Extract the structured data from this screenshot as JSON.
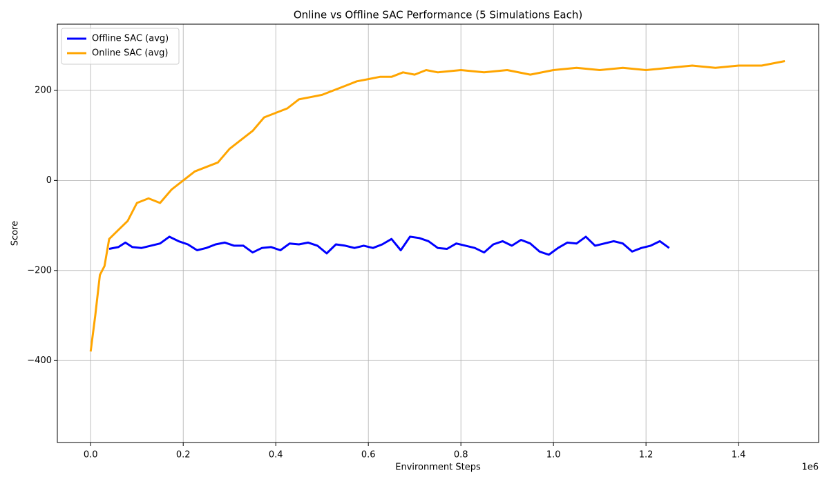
{
  "chart_data": {
    "type": "line",
    "title": "Online vs Offline SAC Performance (5 Simulations Each)",
    "x_label": "Environment Steps",
    "y_label": "Score",
    "x_offset_label": "1e6",
    "xlim": [
      -0.072,
      1.573
    ],
    "ylim": [
      -582,
      347
    ],
    "xticks": [
      {
        "value": 0,
        "label": "0.0"
      },
      0.2,
      0.4,
      0.6,
      0.8,
      {
        "value": 1,
        "label": "1.0"
      },
      1.2,
      1.4
    ],
    "yticks": [
      {
        "value": -400,
        "label": "−400"
      },
      {
        "value": -200,
        "label": "−200"
      },
      0,
      200
    ],
    "grid": true,
    "legend": "upper left",
    "series": [
      {
        "name": "Offline SAC (avg)",
        "color": "#0000ff",
        "x": [
          0.04,
          0.06,
          0.075,
          0.09,
          0.11,
          0.13,
          0.15,
          0.17,
          0.19,
          0.21,
          0.23,
          0.25,
          0.27,
          0.29,
          0.31,
          0.33,
          0.35,
          0.37,
          0.39,
          0.41,
          0.43,
          0.45,
          0.47,
          0.49,
          0.51,
          0.53,
          0.55,
          0.57,
          0.59,
          0.61,
          0.63,
          0.65,
          0.67,
          0.69,
          0.71,
          0.73,
          0.75,
          0.77,
          0.79,
          0.81,
          0.83,
          0.85,
          0.87,
          0.89,
          0.91,
          0.93,
          0.95,
          0.97,
          0.99,
          1.01,
          1.03,
          1.05,
          1.07,
          1.09,
          1.11,
          1.13,
          1.15,
          1.17,
          1.19,
          1.21,
          1.23,
          1.25
        ],
        "values": [
          -152,
          -148,
          -138,
          -148,
          -150,
          -145,
          -140,
          -125,
          -135,
          -142,
          -155,
          -150,
          -142,
          -138,
          -145,
          -145,
          -160,
          -150,
          -148,
          -155,
          -140,
          -142,
          -138,
          -145,
          -162,
          -142,
          -145,
          -150,
          -145,
          -150,
          -142,
          -130,
          -155,
          -125,
          -128,
          -135,
          -150,
          -152,
          -140,
          -145,
          -150,
          -160,
          -142,
          -135,
          -145,
          -132,
          -140,
          -158,
          -165,
          -150,
          -138,
          -140,
          -125,
          -145,
          -140,
          -135,
          -140,
          -158,
          -150,
          -145,
          -135,
          -150
        ]
      },
      {
        "name": "Online SAC (avg)",
        "color": "#ffa500",
        "x": [
          0,
          0.01,
          0.02,
          0.03,
          0.04,
          0.06,
          0.08,
          0.1,
          0.125,
          0.15,
          0.175,
          0.2,
          0.225,
          0.25,
          0.275,
          0.3,
          0.325,
          0.35,
          0.375,
          0.4,
          0.425,
          0.45,
          0.475,
          0.5,
          0.525,
          0.55,
          0.575,
          0.6,
          0.625,
          0.65,
          0.675,
          0.7,
          0.725,
          0.75,
          0.8,
          0.85,
          0.9,
          0.95,
          1.0,
          1.05,
          1.1,
          1.15,
          1.2,
          1.25,
          1.3,
          1.35,
          1.4,
          1.45,
          1.5
        ],
        "values": [
          -380,
          -300,
          -210,
          -190,
          -130,
          -110,
          -90,
          -50,
          -40,
          -50,
          -20,
          0,
          20,
          30,
          40,
          70,
          90,
          110,
          140,
          150,
          160,
          180,
          185,
          190,
          200,
          210,
          220,
          225,
          230,
          230,
          240,
          235,
          245,
          240,
          245,
          240,
          245,
          235,
          245,
          250,
          245,
          250,
          245,
          250,
          255,
          250,
          255,
          255,
          265
        ]
      }
    ]
  }
}
